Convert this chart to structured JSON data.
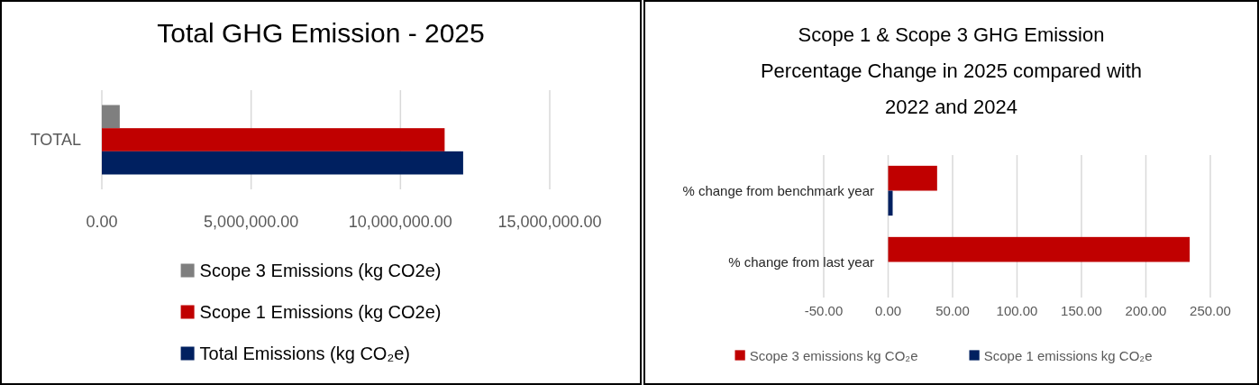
{
  "chart_data": [
    {
      "type": "bar",
      "orientation": "horizontal",
      "title": "Total GHG Emission - 2025",
      "categories": [
        "TOTAL"
      ],
      "series": [
        {
          "name": "Scope 3 Emissions (kg CO2e)",
          "color": "#7f7f7f",
          "values": [
            600000
          ]
        },
        {
          "name": "Scope 1 Emissions (kg CO2e)",
          "color": "#c00000",
          "values": [
            11480000
          ]
        },
        {
          "name": "Total Emissions (kg CO₂e)",
          "color": "#002060",
          "values": [
            12100000
          ]
        }
      ],
      "xlim": [
        0,
        15000000
      ],
      "xticks": [
        {
          "value": 0,
          "label": "0.00"
        },
        {
          "value": 5000000,
          "label": "5,000,000.00"
        },
        {
          "value": 10000000,
          "label": "10,000,000.00"
        },
        {
          "value": 15000000,
          "label": "15,000,000.00"
        }
      ],
      "grid": "x",
      "legend": "bottom"
    },
    {
      "type": "bar",
      "orientation": "horizontal",
      "title": "Scope 1 & Scope 3 GHG Emission Percentage Change in 2025 compared with 2022 and 2024",
      "categories": [
        "% change from benchmark year",
        "% change from last year"
      ],
      "series": [
        {
          "name": "Scope 3 emissions kg CO₂e",
          "color": "#c00000",
          "values": [
            38,
            234
          ]
        },
        {
          "name": "Scope 1 emissions kg CO₂e",
          "color": "#002060",
          "values": [
            3.5,
            null
          ]
        }
      ],
      "xlim": [
        -50,
        250
      ],
      "xticks": [
        {
          "value": -50,
          "label": "-50.00"
        },
        {
          "value": 0,
          "label": "0.00"
        },
        {
          "value": 50,
          "label": "50.00"
        },
        {
          "value": 100,
          "label": "100.00"
        },
        {
          "value": 150,
          "label": "150.00"
        },
        {
          "value": 200,
          "label": "200.00"
        },
        {
          "value": 250,
          "label": "250.00"
        }
      ],
      "grid": "x",
      "legend": "bottom"
    }
  ]
}
